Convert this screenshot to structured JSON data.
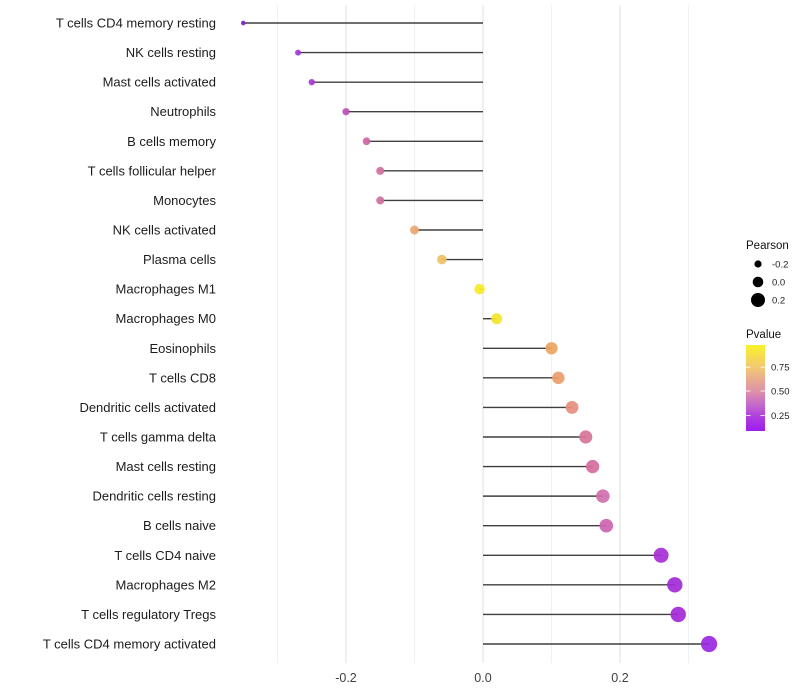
{
  "chart_data": {
    "type": "scatter",
    "subtype": "lollipop",
    "title": "",
    "xlabel": "",
    "ylabel": "",
    "xlim": [
      -0.4,
      0.35
    ],
    "grid": "vertical-only",
    "x_ticks": [
      {
        "label": "-0.2",
        "value": -0.2
      },
      {
        "label": "0.0",
        "value": 0.0
      },
      {
        "label": "0.2",
        "value": 0.2
      }
    ],
    "gridline_values": [
      -0.3,
      -0.2,
      -0.1,
      0.0,
      0.1,
      0.2,
      0.3
    ],
    "rows": [
      {
        "label": "T cells CD4 memory resting",
        "pearson": -0.35,
        "color": "#7d25c6"
      },
      {
        "label": "NK cells resting",
        "pearson": -0.27,
        "color": "#a13bd4"
      },
      {
        "label": "Mast cells activated",
        "pearson": -0.25,
        "color": "#a83ad3"
      },
      {
        "label": "Neutrophils",
        "pearson": -0.2,
        "color": "#bf4db8"
      },
      {
        "label": "B cells memory",
        "pearson": -0.17,
        "color": "#cc66a4"
      },
      {
        "label": "T cells follicular helper",
        "pearson": -0.15,
        "color": "#d1709e"
      },
      {
        "label": "Monocytes",
        "pearson": -0.15,
        "color": "#d06f9f"
      },
      {
        "label": "NK cells activated",
        "pearson": -0.1,
        "color": "#eca672"
      },
      {
        "label": "Plasma cells",
        "pearson": -0.06,
        "color": "#edc163"
      },
      {
        "label": "Macrophages M1",
        "pearson": -0.005,
        "color": "#f8e926"
      },
      {
        "label": "Macrophages M0",
        "pearson": 0.02,
        "color": "#f5e428"
      },
      {
        "label": "Eosinophils",
        "pearson": 0.1,
        "color": "#eca45f"
      },
      {
        "label": "T cells CD8",
        "pearson": 0.11,
        "color": "#eb9d6c"
      },
      {
        "label": "Dendritic cells activated",
        "pearson": 0.13,
        "color": "#e68e7e"
      },
      {
        "label": "T cells gamma delta",
        "pearson": 0.15,
        "color": "#d67497"
      },
      {
        "label": "Mast cells resting",
        "pearson": 0.16,
        "color": "#d56e9d"
      },
      {
        "label": "Dendritic cells resting",
        "pearson": 0.175,
        "color": "#d06fae"
      },
      {
        "label": "B cells naive",
        "pearson": 0.18,
        "color": "#cd64b0"
      },
      {
        "label": "T cells CD4 naive",
        "pearson": 0.26,
        "color": "#a82fd6"
      },
      {
        "label": "Macrophages M2",
        "pearson": 0.28,
        "color": "#a32ad8"
      },
      {
        "label": "T cells regulatory  Tregs",
        "pearson": 0.285,
        "color": "#a428d8"
      },
      {
        "label": "T cells CD4 memory activated",
        "pearson": 0.33,
        "color": "#9a28e2"
      }
    ],
    "legend": {
      "size": {
        "title": "Pearson",
        "entries": [
          {
            "label": "-0.2",
            "value": -0.2
          },
          {
            "label": "0.0",
            "value": 0.0
          },
          {
            "label": "0.2",
            "value": 0.2
          }
        ],
        "dot_color": "#000000"
      },
      "color": {
        "title": "Pvalue",
        "ticks": [
          {
            "label": "0.75",
            "t": 0.258
          },
          {
            "label": "0.50",
            "t": 0.535
          },
          {
            "label": "0.25",
            "t": 0.82
          }
        ],
        "gradient_stops": [
          {
            "offset": 0.0,
            "color": "#f9f32a"
          },
          {
            "offset": 0.12,
            "color": "#f7dd4b"
          },
          {
            "offset": 0.27,
            "color": "#f2c873"
          },
          {
            "offset": 0.4,
            "color": "#e9ab90"
          },
          {
            "offset": 0.55,
            "color": "#dc8fab"
          },
          {
            "offset": 0.7,
            "color": "#c368cc"
          },
          {
            "offset": 0.85,
            "color": "#ad3ae0"
          },
          {
            "offset": 1.0,
            "color": "#9f1cf0"
          }
        ]
      }
    },
    "style": {
      "stem_color": "#3f3f3f",
      "major_grid_color": "#e6e6e6",
      "minor_grid_color": "#f1f1f1",
      "axis_text_color": "#404040",
      "label_text_color": "#1c1c1c"
    }
  }
}
